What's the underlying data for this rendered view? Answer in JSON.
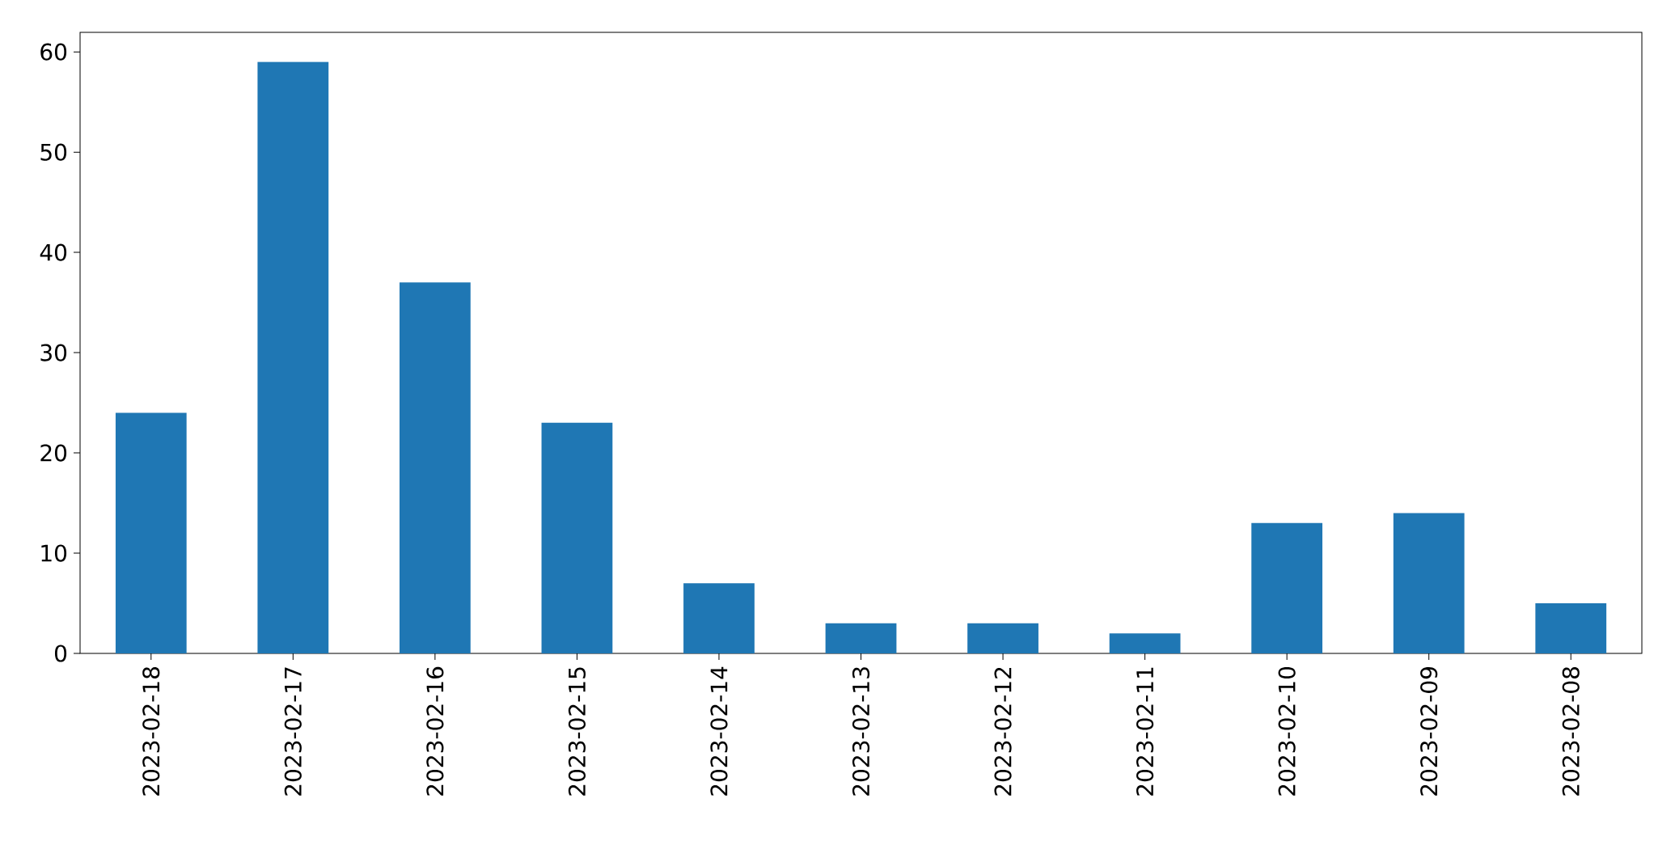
{
  "chart_data": {
    "type": "bar",
    "categories": [
      "2023-02-18",
      "2023-02-17",
      "2023-02-16",
      "2023-02-15",
      "2023-02-14",
      "2023-02-13",
      "2023-02-12",
      "2023-02-11",
      "2023-02-10",
      "2023-02-09",
      "2023-02-08"
    ],
    "values": [
      24,
      59,
      37,
      23,
      7,
      3,
      3,
      2,
      13,
      14,
      5
    ],
    "color": "#1f77b4",
    "ylim": [
      0,
      61.95
    ],
    "yticks": [
      0,
      10,
      20,
      30,
      40,
      50,
      60
    ]
  }
}
